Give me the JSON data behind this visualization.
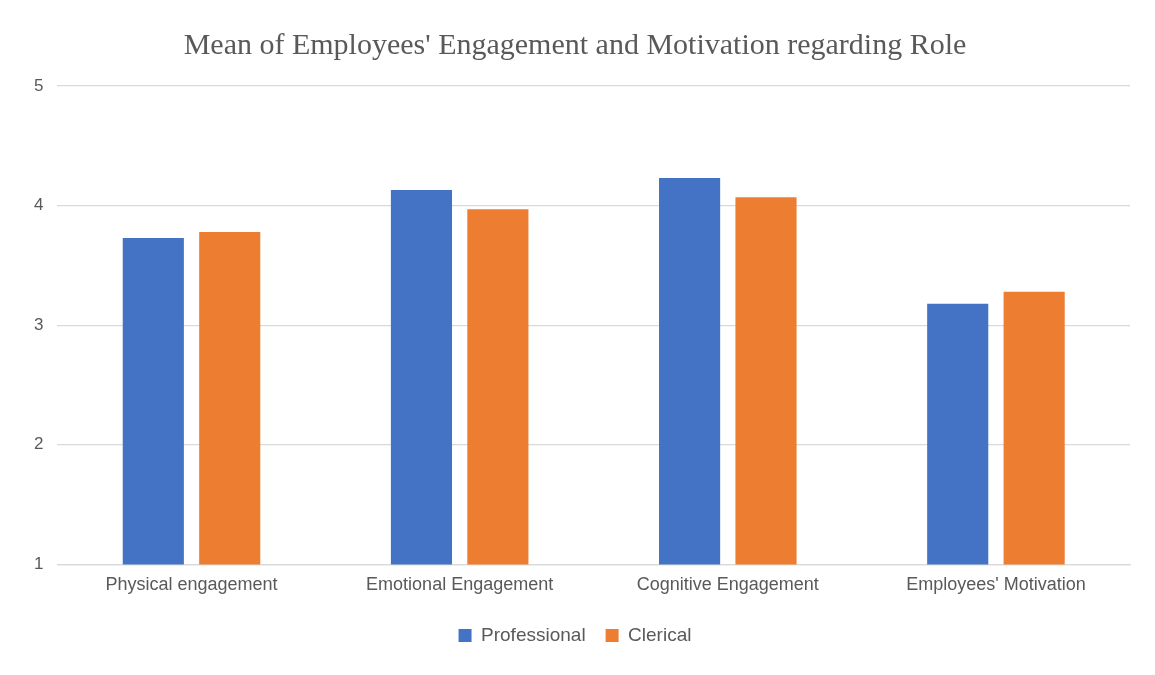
{
  "chart_data": {
    "type": "bar",
    "title": "Mean of Employees' Engagement and Motivation regarding Role",
    "categories": [
      "Physical engagement",
      "Emotional Engagement",
      "Cognitive Engagement",
      "Employees' Motivation"
    ],
    "series": [
      {
        "name": "Professional",
        "color": "#4472c4",
        "values": [
          3.73,
          4.13,
          4.23,
          3.18
        ]
      },
      {
        "name": "Clerical",
        "color": "#ed7d31",
        "values": [
          3.78,
          3.97,
          4.07,
          3.28
        ]
      }
    ],
    "ylim": [
      1,
      5
    ],
    "yticks": [
      1,
      2,
      3,
      4,
      5
    ],
    "grid": "y",
    "legend": "bottom"
  }
}
